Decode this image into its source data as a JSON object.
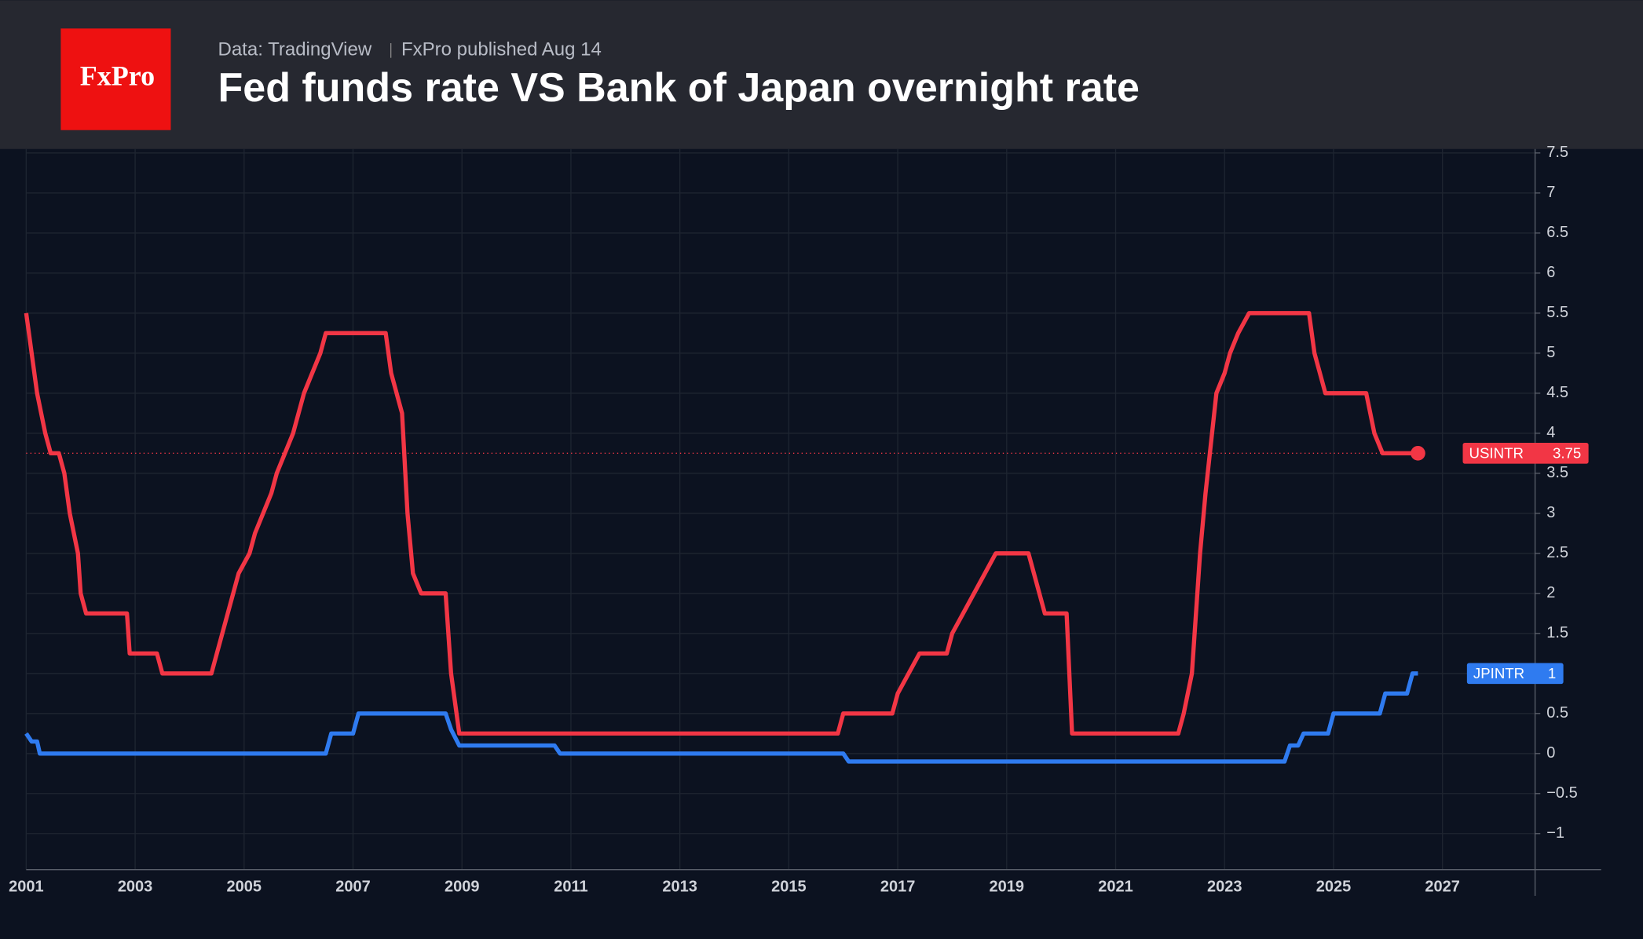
{
  "header": {
    "logo": "FxPro",
    "source": "Data: TradingView",
    "published": "FxPro published Aug 14"
  },
  "chart_data": {
    "type": "line",
    "title": "Fed funds rate VS Bank of Japan overnight rate",
    "xlim": [
      2001.0,
      2028.7
    ],
    "ylim": [
      -1.45,
      7.55
    ],
    "xticks": [
      2001,
      2003,
      2005,
      2007,
      2009,
      2011,
      2013,
      2015,
      2017,
      2019,
      2021,
      2023,
      2025,
      2027
    ],
    "yticks": [
      {
        "value": -1,
        "label": "−1"
      },
      {
        "value": -0.5,
        "label": "−0.5"
      },
      0,
      0.5,
      1,
      1.5,
      2,
      2.5,
      3,
      3.5,
      4,
      4.5,
      5,
      5.5,
      6,
      6.5,
      7,
      7.5
    ],
    "grid": true,
    "series": [
      {
        "name": "USINTR",
        "color": "#f23645",
        "x": [
          2001.0,
          2001.2,
          2001.35,
          2001.45,
          2001.6,
          2001.7,
          2001.8,
          2001.95,
          2002.0,
          2002.1,
          2002.85,
          2002.9,
          2003.4,
          2003.5,
          2004.4,
          2004.5,
          2004.6,
          2004.7,
          2004.8,
          2004.9,
          2005.1,
          2005.2,
          2005.35,
          2005.5,
          2005.6,
          2005.75,
          2005.9,
          2006.0,
          2006.1,
          2006.25,
          2006.4,
          2006.5,
          2007.6,
          2007.7,
          2007.8,
          2007.9,
          2008.0,
          2008.1,
          2008.25,
          2008.7,
          2008.8,
          2008.95,
          2015.9,
          2016.0,
          2016.9,
          2017.0,
          2017.2,
          2017.4,
          2017.9,
          2018.0,
          2018.2,
          2018.4,
          2018.6,
          2018.8,
          2019.4,
          2019.5,
          2019.6,
          2019.7,
          2020.1,
          2020.2,
          2022.15,
          2022.25,
          2022.4,
          2022.55,
          2022.65,
          2022.85,
          2023.0,
          2023.1,
          2023.25,
          2023.45,
          2024.55,
          2024.65,
          2024.75,
          2024.85,
          2025.6,
          2025.75,
          2025.9,
          2026.55
        ],
        "values": [
          5.5,
          4.5,
          4.0,
          3.75,
          3.75,
          3.5,
          3.0,
          2.5,
          2.0,
          1.75,
          1.75,
          1.25,
          1.25,
          1.0,
          1.0,
          1.25,
          1.5,
          1.75,
          2.0,
          2.25,
          2.5,
          2.75,
          3.0,
          3.25,
          3.5,
          3.75,
          4.0,
          4.25,
          4.5,
          4.75,
          5.0,
          5.25,
          5.25,
          4.75,
          4.5,
          4.25,
          3.0,
          2.25,
          2.0,
          2.0,
          1.0,
          0.25,
          0.25,
          0.5,
          0.5,
          0.75,
          1.0,
          1.25,
          1.25,
          1.5,
          1.75,
          2.0,
          2.25,
          2.5,
          2.5,
          2.25,
          2.0,
          1.75,
          1.75,
          0.25,
          0.25,
          0.5,
          1.0,
          2.5,
          3.25,
          4.5,
          4.75,
          5.0,
          5.25,
          5.5,
          5.5,
          5.0,
          4.75,
          4.5,
          4.5,
          4.0,
          3.75,
          3.75
        ]
      },
      {
        "name": "JPINTR",
        "color": "#2f7bf0",
        "x": [
          2001.0,
          2001.1,
          2001.2,
          2001.25,
          2006.5,
          2006.6,
          2007.0,
          2007.1,
          2008.7,
          2008.8,
          2008.95,
          2010.7,
          2010.8,
          2016.0,
          2016.1,
          2024.1,
          2024.2,
          2024.35,
          2024.45,
          2024.9,
          2025.0,
          2025.85,
          2025.95,
          2026.35,
          2026.45,
          2026.55
        ],
        "values": [
          0.25,
          0.15,
          0.15,
          0.0,
          0.0,
          0.25,
          0.25,
          0.5,
          0.5,
          0.3,
          0.1,
          0.1,
          0.0,
          0.0,
          -0.1,
          -0.1,
          0.1,
          0.1,
          0.25,
          0.25,
          0.5,
          0.5,
          0.75,
          0.75,
          1.0,
          1.0
        ]
      }
    ]
  }
}
